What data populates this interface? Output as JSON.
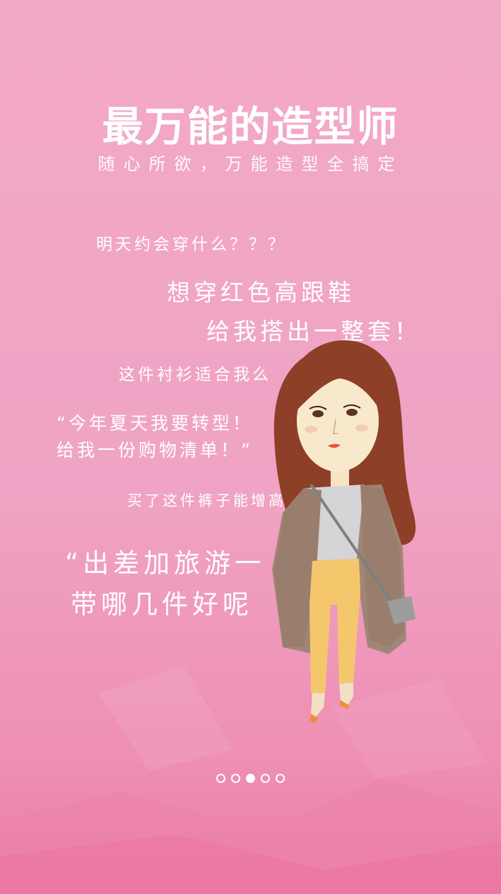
{
  "title": "最万能的造型师",
  "subtitle": "随心所欲，万能造型全搞定",
  "quotes": {
    "q1": "明天约会穿什么？？？",
    "q2_line1": "想穿红色高跟鞋",
    "q2_line2": "给我搭出一整套！",
    "q3": "这件衬衫适合我么",
    "q4_line1": "“今年夏天我要转型！",
    "q4_line2": "给我一份购物清单！”",
    "q5": "买了这件裤子能增高么？显瘦么？配",
    "q6_line1": "“出差加旅游一",
    "q6_line2": "带哪几件好呢"
  },
  "illustration": "girl-character-illustration",
  "pager": {
    "total": 5,
    "active_index": 2
  },
  "colors": {
    "background_top": "#f2a9c7",
    "background_bottom": "#ea7aa4",
    "text": "#ffffff"
  }
}
